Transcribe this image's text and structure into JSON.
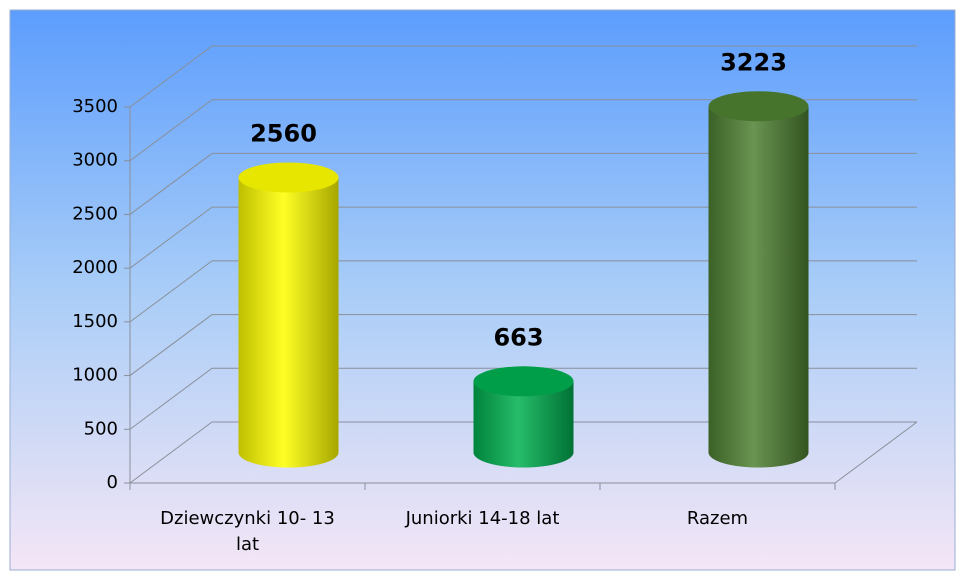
{
  "chart_data": {
    "type": "bar3d",
    "categories": [
      "Dziewczynki 10- 13 lat",
      "Juniorki 14-18 lat",
      "Razem"
    ],
    "values": [
      2560,
      663,
      3223
    ],
    "colors": [
      "#ffff00",
      "#00b050",
      "#4f8132"
    ],
    "ylim": [
      0,
      3500
    ],
    "yticks": [
      0,
      500,
      1000,
      1500,
      2000,
      2500,
      3000,
      3500
    ],
    "grid": true
  }
}
